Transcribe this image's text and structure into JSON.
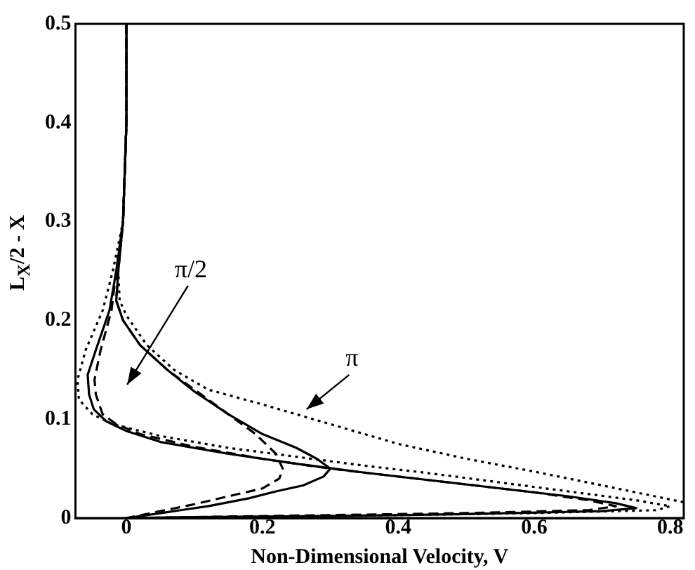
{
  "chart_data": {
    "type": "line",
    "xlabel": "Non-Dimensional Velocity, V",
    "ylabel": "L$_{X}$/2 - X",
    "xlim": [
      -0.075,
      0.82
    ],
    "xticks": [
      0,
      0.2,
      0.4,
      0.6,
      0.8
    ],
    "ylim": [
      0,
      0.5
    ],
    "yticks": [
      0,
      0.1,
      0.2,
      0.3,
      0.4,
      0.5
    ],
    "grid": false,
    "legend": false,
    "marker": "none",
    "annotations": [
      "π/2",
      "π"
    ],
    "series": [
      {
        "color": "#000000",
        "line_style": "solid",
        "x": [
          0,
          0,
          -0.005,
          -0.015,
          -0.025,
          -0.045,
          -0.057,
          -0.055,
          -0.048,
          -0.03,
          0,
          0.05,
          0.15,
          0.25,
          0.35,
          0.45,
          0.55,
          0.65,
          0.72,
          0.75,
          0.7,
          0.5,
          0.3,
          0.1,
          0
        ],
        "values": [
          0.5,
          0.4,
          0.3,
          0.25,
          0.21,
          0.17,
          0.145,
          0.125,
          0.11,
          0.098,
          0.088,
          0.077,
          0.065,
          0.055,
          0.046,
          0.038,
          0.03,
          0.022,
          0.015,
          0.01,
          0.007,
          0.004,
          0.002,
          0.001,
          0
        ]
      },
      {
        "color": "#000000",
        "line_style": "dashed",
        "x": [
          0,
          0,
          -0.005,
          -0.015,
          -0.022,
          -0.038,
          -0.047,
          -0.045,
          -0.035,
          -0.015,
          0.02,
          0.1,
          0.2,
          0.3,
          0.4,
          0.5,
          0.6,
          0.68,
          0.72,
          0.68,
          0.5,
          0.3,
          0.1,
          0
        ],
        "values": [
          0.5,
          0.4,
          0.3,
          0.25,
          0.21,
          0.17,
          0.14,
          0.125,
          0.105,
          0.095,
          0.085,
          0.072,
          0.06,
          0.05,
          0.042,
          0.034,
          0.026,
          0.018,
          0.012,
          0.008,
          0.005,
          0.003,
          0.001,
          0
        ]
      },
      {
        "color": "#000000",
        "line_style": "dotted",
        "x": [
          0,
          0,
          -0.005,
          -0.02,
          -0.035,
          -0.06,
          -0.072,
          -0.07,
          -0.05,
          -0.02,
          0.05,
          0.15,
          0.25,
          0.35,
          0.45,
          0.55,
          0.65,
          0.75,
          0.8,
          0.78,
          0.6,
          0.3,
          0
        ],
        "values": [
          0.5,
          0.4,
          0.3,
          0.25,
          0.21,
          0.17,
          0.14,
          0.12,
          0.105,
          0.095,
          0.083,
          0.071,
          0.062,
          0.053,
          0.045,
          0.036,
          0.027,
          0.018,
          0.012,
          0.008,
          0.005,
          0.002,
          0
        ]
      },
      {
        "color": "#000000",
        "line_style": "solid",
        "x": [
          0,
          0,
          -0.005,
          -0.012,
          -0.015,
          -0.005,
          0.02,
          0.06,
          0.1,
          0.15,
          0.2,
          0.25,
          0.28,
          0.3,
          0.29,
          0.26,
          0.22,
          0.18,
          0.12,
          0.06,
          0
        ],
        "values": [
          0.5,
          0.4,
          0.3,
          0.25,
          0.22,
          0.2,
          0.175,
          0.15,
          0.128,
          0.105,
          0.085,
          0.071,
          0.06,
          0.05,
          0.042,
          0.033,
          0.027,
          0.02,
          0.012,
          0.006,
          0
        ]
      },
      {
        "color": "#000000",
        "line_style": "dashed",
        "x": [
          0,
          0,
          -0.005,
          -0.012,
          -0.015,
          -0.005,
          0.02,
          0.06,
          0.1,
          0.15,
          0.19,
          0.22,
          0.23,
          0.225,
          0.2,
          0.15,
          0.1,
          0.05,
          0
        ],
        "values": [
          0.5,
          0.4,
          0.3,
          0.25,
          0.22,
          0.2,
          0.175,
          0.15,
          0.13,
          0.105,
          0.085,
          0.065,
          0.05,
          0.04,
          0.03,
          0.022,
          0.014,
          0.007,
          0
        ]
      },
      {
        "color": "#000000",
        "line_style": "dotted",
        "x": [
          0,
          0,
          -0.005,
          -0.012,
          -0.01,
          0,
          0.03,
          0.07,
          0.12,
          0.2,
          0.3,
          0.4,
          0.5,
          0.6,
          0.7,
          0.82
        ],
        "values": [
          0.5,
          0.4,
          0.3,
          0.25,
          0.22,
          0.205,
          0.175,
          0.15,
          0.13,
          0.115,
          0.095,
          0.075,
          0.06,
          0.047,
          0.033,
          0.016
        ]
      }
    ]
  }
}
